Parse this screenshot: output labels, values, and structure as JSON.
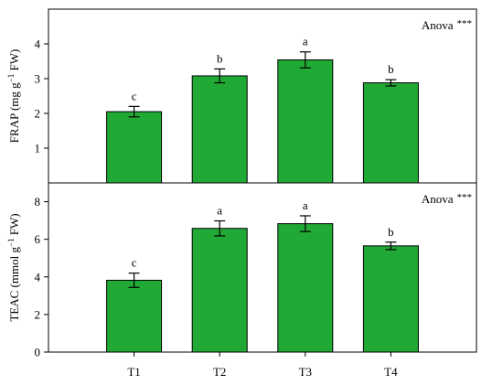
{
  "chart_data": [
    {
      "type": "bar",
      "categories": [
        "T1",
        "T2",
        "T3",
        "T4"
      ],
      "values": [
        2.05,
        3.08,
        3.54,
        2.88
      ],
      "errors": [
        0.15,
        0.2,
        0.23,
        0.09
      ],
      "significance": [
        "c",
        "b",
        "a",
        "b"
      ],
      "bar_color": "#21a935",
      "ylabel": "FRAP (mg g",
      "ylabel_sup": "−1",
      "ylabel_end": " FW)",
      "annotation": "Anova",
      "annotation_sig": "***",
      "ylim": [
        0,
        5
      ],
      "yticks": [
        {
          "value": 1,
          "label": "1"
        },
        {
          "value": 2,
          "label": "2"
        },
        {
          "value": 3,
          "label": "3"
        },
        {
          "value": 4,
          "label": "4"
        }
      ]
    },
    {
      "type": "bar",
      "categories": [
        "T1",
        "T2",
        "T3",
        "T4"
      ],
      "values": [
        3.82,
        6.58,
        6.83,
        5.65
      ],
      "errors": [
        0.38,
        0.4,
        0.42,
        0.2
      ],
      "significance": [
        "c",
        "a",
        "a",
        "b"
      ],
      "bar_color": "#21a935",
      "ylabel": "TEAC (mmol g",
      "ylabel_sup": "−1",
      "ylabel_end": " FW)",
      "annotation": "Anova",
      "annotation_sig": "***",
      "ylim": [
        0,
        9
      ],
      "yticks": [
        {
          "value": 0,
          "label": "0"
        },
        {
          "value": 2,
          "label": "2"
        },
        {
          "value": 4,
          "label": "4"
        },
        {
          "value": 6,
          "label": "6"
        },
        {
          "value": 8,
          "label": "8"
        }
      ],
      "xtick_labels": [
        "T1",
        "T2",
        "T3",
        "T4"
      ]
    }
  ]
}
